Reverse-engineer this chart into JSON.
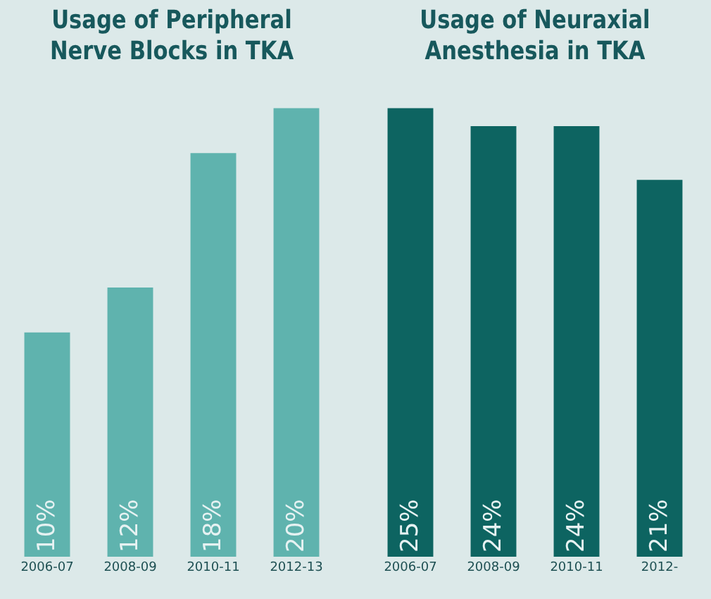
{
  "chart_data": [
    {
      "type": "bar",
      "title": "Usage of Peripheral Nerve Blocks in TKA",
      "categories": [
        "2006-07",
        "2008-09",
        "2010-11",
        "2012-13"
      ],
      "values": [
        10,
        12,
        18,
        20
      ],
      "value_labels": [
        "10%",
        "12%",
        "18%",
        "20%"
      ],
      "color": "#5fb3ae"
    },
    {
      "type": "bar",
      "title": "Usage of Neuraxial Anesthesia in TKA",
      "categories": [
        "2006-07",
        "2008-09",
        "2010-11",
        "2012-"
      ],
      "values": [
        25,
        24,
        24,
        21
      ],
      "value_labels": [
        "25%",
        "24%",
        "24%",
        "21%"
      ],
      "color": "#0d6461"
    }
  ]
}
